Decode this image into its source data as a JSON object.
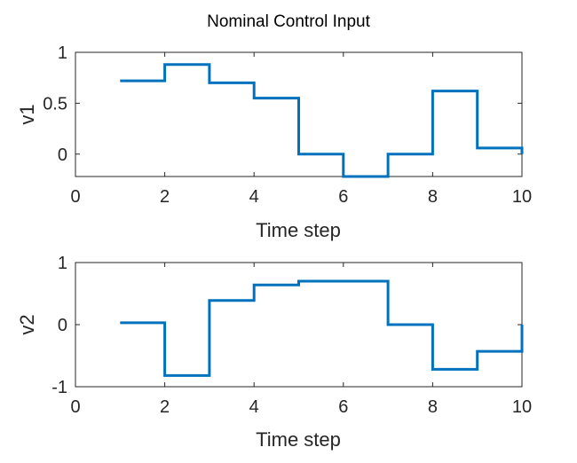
{
  "figure_title": "Nominal Control Input",
  "chart_data": [
    {
      "type": "line",
      "style": "stairs",
      "title": "",
      "xlabel": "Time step",
      "ylabel": "v1",
      "xlim": [
        0,
        10
      ],
      "ylim": [
        -0.22,
        1
      ],
      "xticks": [
        0,
        2,
        4,
        6,
        8,
        10
      ],
      "yticks": [
        0,
        0.5,
        1
      ],
      "xtick_labels": [
        "0",
        "2",
        "4",
        "6",
        "8",
        "10"
      ],
      "ytick_labels": [
        "0",
        "0.5",
        "1"
      ],
      "grid": false,
      "color": "#0072BD",
      "x": [
        1,
        2,
        3,
        4,
        5,
        6,
        7,
        8,
        9,
        10
      ],
      "y": [
        0.72,
        0.88,
        0.7,
        0.55,
        0.0,
        -0.22,
        0.0,
        0.62,
        0.06,
        0.0
      ]
    },
    {
      "type": "line",
      "style": "stairs",
      "title": "",
      "xlabel": "Time step",
      "ylabel": "v2",
      "xlim": [
        0,
        10
      ],
      "ylim": [
        -1,
        1
      ],
      "xticks": [
        0,
        2,
        4,
        6,
        8,
        10
      ],
      "yticks": [
        -1,
        0,
        1
      ],
      "xtick_labels": [
        "0",
        "2",
        "4",
        "6",
        "8",
        "10"
      ],
      "ytick_labels": [
        "-1",
        "0",
        "1"
      ],
      "grid": false,
      "color": "#0072BD",
      "x": [
        1,
        2,
        3,
        4,
        5,
        6,
        7,
        8,
        9,
        10
      ],
      "y": [
        0.03,
        -0.82,
        0.39,
        0.64,
        0.7,
        0.7,
        0.0,
        -0.72,
        -0.43,
        0.0
      ]
    }
  ]
}
